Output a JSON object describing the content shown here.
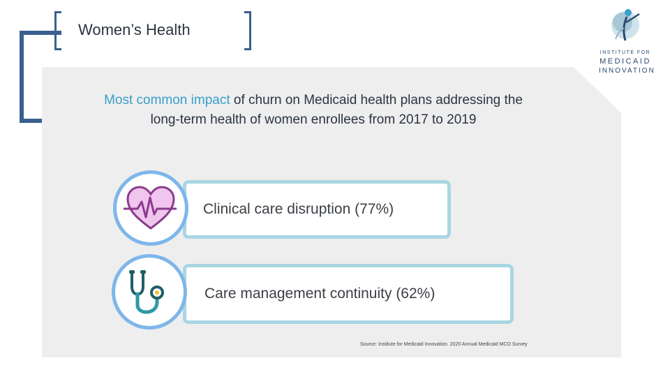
{
  "slide": {
    "title": "Women’s Health"
  },
  "logo": {
    "line1": "INSTITUTE FOR",
    "line2": "MEDICAID",
    "line3": "INNOVATION"
  },
  "headline": {
    "accent": "Most common impact",
    "rest": " of churn on Medicaid health plans addressing the long-term health of women enrollees from 2017 to 2019"
  },
  "items": [
    {
      "label": "Clinical care disruption (77%)",
      "icon": "heart-pulse-icon"
    },
    {
      "label": "Care management continuity (62%)",
      "icon": "stethoscope-icon"
    }
  ],
  "source": "Source: Institute for Medicaid Innovation. 2020 Annual Medicaid MCO Survey",
  "colors": {
    "brand_navy": "#3a5f8f",
    "accent_blue": "#3a9fc8",
    "card_border": "#a9d6e2",
    "circle_border": "#7eb6ea",
    "heart_fill": "#f0c5ee",
    "stethoscope": "#2e9aa6"
  }
}
